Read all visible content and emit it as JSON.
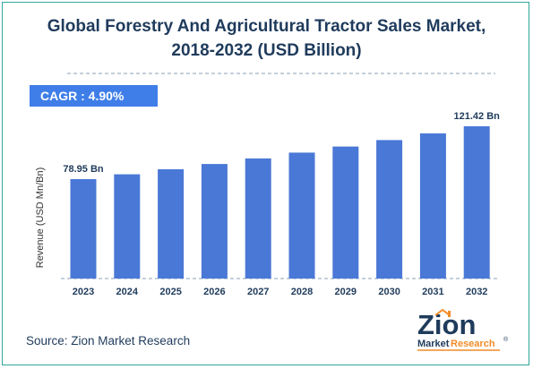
{
  "title_line1": "Global Forestry And Agricultural Tractor Sales Market,",
  "title_line2": "2018-2032 (USD Billion)",
  "cagr_label": "CAGR : 4.90%",
  "source": "Source: Zion Market Research",
  "logo": {
    "word": "Zion",
    "sub1": "Market",
    "sub2": "Research",
    "tm": "®"
  },
  "colors": {
    "bar": "#4a78d6",
    "title": "#1f3b5c",
    "accent": "#3f7ee8",
    "frame": "#2fa79a"
  },
  "chart_data": {
    "type": "bar",
    "ylabel": "Revenue (USD Mn/Bn)",
    "xlabel": "",
    "categories": [
      "2023",
      "2024",
      "2025",
      "2026",
      "2027",
      "2028",
      "2029",
      "2030",
      "2031",
      "2032"
    ],
    "values": [
      78.95,
      82.82,
      86.87,
      91.13,
      95.59,
      100.27,
      105.18,
      110.33,
      115.73,
      121.42
    ],
    "data_labels": [
      {
        "index": 0,
        "text": "78.95 Bn"
      },
      {
        "index": 9,
        "text": "121.42 Bn"
      }
    ],
    "grid": false,
    "legend": "none"
  }
}
